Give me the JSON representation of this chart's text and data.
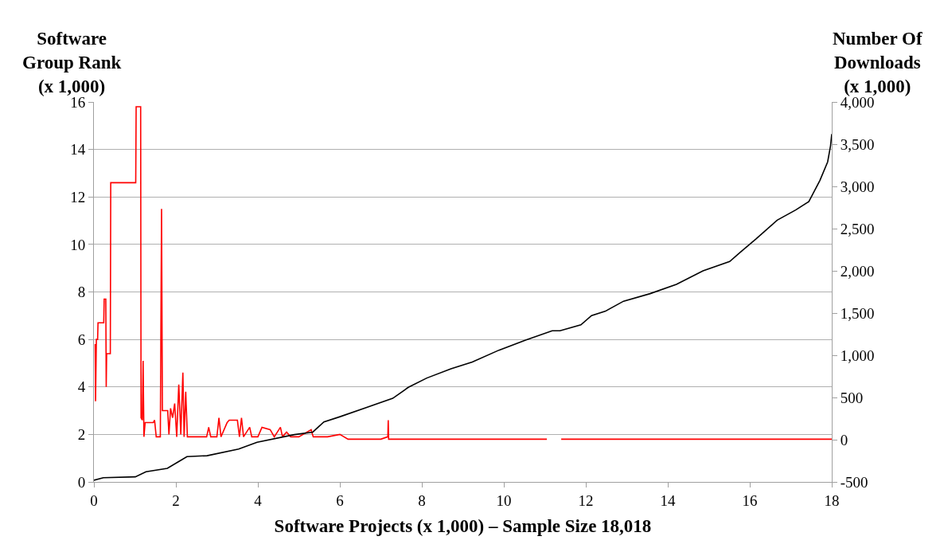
{
  "chart_data": {
    "type": "line",
    "xlabel": "Software Projects (x 1,000) – Sample Size 18,018",
    "ylabel": "Software\nGroup Rank\n(x 1,000)",
    "y2label": "Number Of\nDownloads\n(x 1,000)",
    "xlim": [
      0,
      18
    ],
    "xticks": [
      0,
      2,
      4,
      6,
      8,
      10,
      12,
      14,
      16,
      18
    ],
    "ylim": [
      0,
      16
    ],
    "yticks": [
      0,
      2,
      4,
      6,
      8,
      10,
      12,
      14,
      16
    ],
    "y2lim": [
      -500,
      4000
    ],
    "y2ticks": [
      {
        "value": -500,
        "label": "-500"
      },
      0,
      500,
      {
        "value": 1000,
        "label": "1,000"
      },
      {
        "value": 1500,
        "label": "1,500"
      },
      {
        "value": 2000,
        "label": "2,000"
      },
      {
        "value": 2500,
        "label": "2,500"
      },
      {
        "value": 3000,
        "label": "3,000"
      },
      {
        "value": 3500,
        "label": "3,500"
      },
      {
        "value": 4000,
        "label": "4,000"
      }
    ],
    "grid": "y",
    "marker": "none",
    "line_style": "solid",
    "series": [
      {
        "color": "#ff0000",
        "x": [
          0.03,
          0.04,
          0.06,
          0.09,
          0.1,
          0.24,
          0.25,
          0.29,
          0.3,
          0.31,
          0.4,
          0.41,
          1.02,
          1.03,
          1.14,
          1.15,
          1.18,
          1.2,
          1.22,
          1.25,
          1.45,
          1.48,
          1.52,
          1.62,
          1.64,
          1.65,
          1.67,
          1.8,
          1.83,
          1.87,
          1.92,
          1.97,
          2.02,
          2.07,
          2.12,
          2.17,
          2.2,
          2.24,
          2.28,
          2.5,
          2.75,
          2.8,
          2.85,
          3.0,
          3.05,
          3.1,
          3.25,
          3.3,
          3.5,
          3.55,
          3.6,
          3.65,
          3.8,
          3.85,
          4.0,
          4.1,
          4.3,
          4.4,
          4.55,
          4.6,
          4.7,
          4.8,
          5.0,
          5.3,
          5.35,
          5.5,
          5.7,
          6.0,
          6.2,
          7.0,
          7.17,
          7.18,
          7.19,
          7.5,
          9.0,
          11.05,
          11.2,
          11.4,
          14.0,
          18.0
        ],
        "values": [
          5.8,
          3.4,
          6.0,
          6.0,
          6.7,
          6.7,
          7.7,
          7.7,
          4.0,
          5.4,
          5.4,
          12.6,
          12.6,
          15.8,
          15.8,
          2.7,
          2.6,
          5.1,
          1.9,
          2.5,
          2.5,
          2.6,
          1.9,
          1.9,
          8.5,
          11.5,
          3.0,
          3.0,
          2.0,
          3.1,
          2.7,
          3.3,
          1.9,
          4.1,
          2.0,
          4.6,
          1.9,
          3.8,
          1.9,
          1.9,
          1.9,
          2.3,
          1.9,
          1.9,
          2.7,
          1.9,
          2.5,
          2.6,
          2.6,
          1.9,
          2.7,
          1.9,
          2.3,
          1.9,
          1.9,
          2.3,
          2.2,
          1.9,
          2.3,
          1.9,
          2.1,
          1.9,
          1.9,
          2.2,
          1.9,
          1.9,
          1.9,
          2.0,
          1.8,
          1.8,
          1.9,
          2.6,
          1.8,
          1.8,
          1.8,
          1.8,
          null,
          1.8,
          1.8,
          1.8
        ]
      },
      {
        "color": "#000000",
        "axis": "y2",
        "x": [
          0,
          0.23,
          1.01,
          1.27,
          1.79,
          2.1,
          2.27,
          2.76,
          3.53,
          3.98,
          4.89,
          5.34,
          5.61,
          5.99,
          6.64,
          7.29,
          7.67,
          8.12,
          8.71,
          9.23,
          9.88,
          10.53,
          11.18,
          11.37,
          11.88,
          12.14,
          12.47,
          12.92,
          13.57,
          14.21,
          14.86,
          15.51,
          15.77,
          16.16,
          16.67,
          17.12,
          17.44,
          17.71,
          17.9,
          17.97,
          18.0
        ],
        "values": [
          -480,
          -450,
          -440,
          -380,
          -340,
          -250,
          -200,
          -190,
          -110,
          -30,
          60,
          90,
          210,
          270,
          380,
          490,
          620,
          730,
          840,
          920,
          1060,
          1180,
          1290,
          1290,
          1360,
          1470,
          1520,
          1640,
          1730,
          1840,
          2000,
          2110,
          2220,
          2380,
          2600,
          2720,
          2820,
          3070,
          3290,
          3480,
          3620
        ]
      }
    ]
  }
}
